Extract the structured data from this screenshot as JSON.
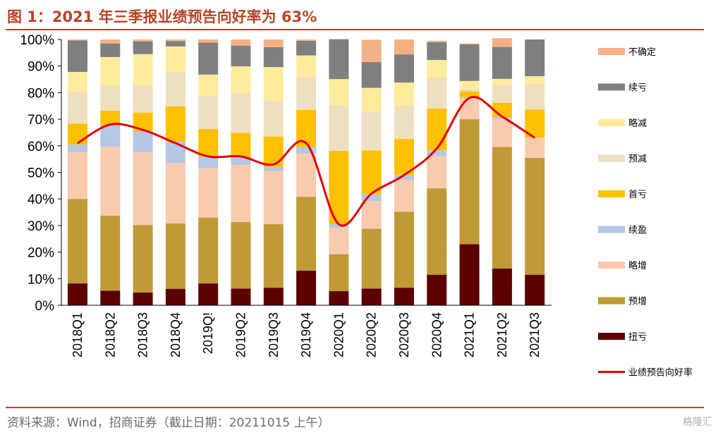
{
  "figure": {
    "title": "图 1：2021 年三季报业绩预告向好率为 63%",
    "source": "资料来源：Wind，招商证券（截止日期：20211015 上午）",
    "watermark": "格隆汇"
  },
  "colors": {
    "accent": "#b5462a",
    "不确定": "#f4b183",
    "续亏": "#7f7f7f",
    "略减": "#ffeb9c",
    "预减": "#eedfc0",
    "首亏": "#ffc000",
    "续盈": "#b4c7e7",
    "略增": "#f8cbad",
    "预增": "#bf9a35",
    "扭亏": "#5c0000",
    "业绩预告向好率": "#e00000"
  },
  "chart_data": {
    "type": "bar",
    "stacked": true,
    "categories": [
      "2018Q1",
      "2018Q2",
      "2018Q3",
      "2018Q4",
      "2019Q!",
      "2019Q2",
      "2019Q3",
      "2019Q4",
      "2020Q1",
      "2020Q2",
      "2020Q3",
      "2020Q4",
      "2021Q1",
      "2021Q2",
      "2021Q3"
    ],
    "ylim": [
      0,
      100
    ],
    "yticks": [
      "0%",
      "10%",
      "20%",
      "30%",
      "40%",
      "50%",
      "60%",
      "70%",
      "80%",
      "90%",
      "100%"
    ],
    "series": [
      {
        "name": "扭亏",
        "values": [
          8.2,
          5.5,
          4.8,
          6.2,
          8.2,
          6.3,
          6.6,
          13.0,
          5.3,
          6.3,
          6.6,
          11.5,
          23.0,
          13.8,
          11.5
        ]
      },
      {
        "name": "预增",
        "values": [
          31.8,
          28.2,
          25.4,
          24.6,
          24.8,
          25.0,
          23.9,
          27.8,
          13.9,
          22.5,
          28.6,
          32.5,
          47.0,
          45.8,
          44.0
        ]
      },
      {
        "name": "略增",
        "values": [
          17.6,
          26.0,
          27.3,
          22.8,
          18.7,
          21.5,
          20.0,
          16.2,
          10.0,
          10.4,
          12.0,
          12.0,
          8.0,
          10.4,
          7.5
        ]
      },
      {
        "name": "续盈",
        "values": [
          2.9,
          7.9,
          7.9,
          7.9,
          4.2,
          2.8,
          1.6,
          2.5,
          1.4,
          2.5,
          1.8,
          2.3,
          0.3,
          0.8,
          0.1
        ]
      },
      {
        "name": "首亏",
        "values": [
          7.8,
          5.6,
          7.1,
          13.3,
          10.4,
          9.3,
          11.4,
          14.0,
          27.5,
          16.5,
          13.6,
          15.7,
          2.2,
          5.4,
          10.5
        ]
      },
      {
        "name": "预减",
        "values": [
          11.8,
          9.4,
          10.2,
          13.1,
          12.5,
          15.0,
          13.5,
          12.5,
          17.2,
          14.8,
          12.5,
          11.8,
          1.0,
          6.5,
          9.6
        ]
      },
      {
        "name": "略减",
        "values": [
          7.7,
          10.8,
          11.8,
          9.5,
          8.0,
          10.0,
          12.6,
          8.0,
          9.8,
          8.8,
          8.7,
          6.5,
          2.9,
          2.5,
          3.0
        ]
      },
      {
        "name": "续亏",
        "values": [
          11.8,
          5.1,
          4.8,
          2.0,
          12.0,
          7.8,
          7.5,
          5.5,
          15.0,
          9.7,
          10.6,
          6.7,
          13.8,
          12.0,
          13.8
        ]
      },
      {
        "name": "不确定",
        "values": [
          0.4,
          1.5,
          0.7,
          0.6,
          1.2,
          2.3,
          2.9,
          0.5,
          0.0,
          8.4,
          5.6,
          0.5,
          0.3,
          3.3,
          0.0
        ]
      }
    ],
    "line": {
      "name": "业绩预告向好率",
      "values": [
        61.0,
        68.0,
        66.0,
        61.0,
        56.0,
        56.0,
        53.0,
        61.0,
        30.5,
        42.0,
        49.0,
        59.0,
        78.0,
        71.0,
        63.0
      ]
    },
    "legend_position": "right",
    "legend_order": [
      "不确定",
      "续亏",
      "略减",
      "预减",
      "首亏",
      "续盈",
      "略增",
      "预增",
      "扭亏",
      "业绩预告向好率"
    ],
    "grid": false
  }
}
